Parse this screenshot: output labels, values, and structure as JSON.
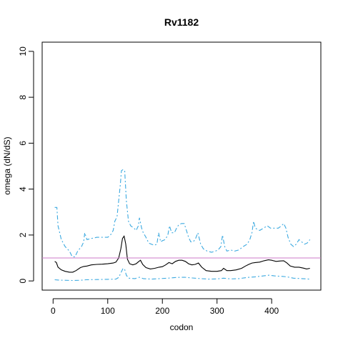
{
  "chart_data": {
    "type": "line",
    "title": "Rv1182",
    "xlabel": "codon",
    "ylabel": "omega (dN/dS)",
    "xlim": [
      -20,
      490
    ],
    "ylim": [
      -0.4,
      10.4
    ],
    "xticks": [
      0,
      100,
      200,
      300,
      400
    ],
    "yticks": [
      0,
      2,
      4,
      6,
      8,
      10
    ],
    "reference_line": {
      "y": 1,
      "color": "#cc79c8"
    },
    "series": [
      {
        "role": "upper",
        "color": "#3ba9e0",
        "style": "dashed",
        "points": [
          [
            3,
            3.2
          ],
          [
            7,
            3.2
          ],
          [
            9,
            2.4
          ],
          [
            15,
            1.8
          ],
          [
            22,
            1.5
          ],
          [
            30,
            1.3
          ],
          [
            35,
            1.05
          ],
          [
            40,
            1.05
          ],
          [
            45,
            1.3
          ],
          [
            52,
            1.5
          ],
          [
            56,
            1.7
          ],
          [
            58,
            2.1
          ],
          [
            62,
            1.8
          ],
          [
            70,
            1.85
          ],
          [
            80,
            1.9
          ],
          [
            90,
            1.9
          ],
          [
            100,
            1.9
          ],
          [
            105,
            2.0
          ],
          [
            110,
            2.2
          ],
          [
            113,
            2.6
          ],
          [
            117,
            2.8
          ],
          [
            120,
            3.5
          ],
          [
            123,
            4.2
          ],
          [
            125,
            4.8
          ],
          [
            128,
            4.85
          ],
          [
            131,
            4.8
          ],
          [
            134,
            3.5
          ],
          [
            138,
            2.6
          ],
          [
            142,
            2.4
          ],
          [
            148,
            2.3
          ],
          [
            152,
            2.2
          ],
          [
            156,
            2.4
          ],
          [
            158,
            2.75
          ],
          [
            162,
            2.3
          ],
          [
            165,
            2.1
          ],
          [
            170,
            1.9
          ],
          [
            175,
            1.65
          ],
          [
            180,
            1.6
          ],
          [
            185,
            1.55
          ],
          [
            190,
            1.6
          ],
          [
            193,
            2.1
          ],
          [
            197,
            1.7
          ],
          [
            200,
            1.75
          ],
          [
            205,
            1.8
          ],
          [
            210,
            2.0
          ],
          [
            213,
            2.4
          ],
          [
            217,
            2.1
          ],
          [
            222,
            2.1
          ],
          [
            226,
            2.3
          ],
          [
            230,
            2.45
          ],
          [
            235,
            2.5
          ],
          [
            240,
            2.5
          ],
          [
            244,
            2.2
          ],
          [
            248,
            1.9
          ],
          [
            252,
            1.7
          ],
          [
            256,
            1.7
          ],
          [
            260,
            1.8
          ],
          [
            265,
            2.1
          ],
          [
            270,
            1.6
          ],
          [
            275,
            1.4
          ],
          [
            282,
            1.3
          ],
          [
            290,
            1.25
          ],
          [
            297,
            1.3
          ],
          [
            302,
            1.35
          ],
          [
            307,
            1.5
          ],
          [
            310,
            2.0
          ],
          [
            314,
            1.5
          ],
          [
            318,
            1.3
          ],
          [
            325,
            1.35
          ],
          [
            332,
            1.3
          ],
          [
            340,
            1.35
          ],
          [
            348,
            1.5
          ],
          [
            355,
            1.6
          ],
          [
            360,
            1.8
          ],
          [
            364,
            2.1
          ],
          [
            367,
            2.6
          ],
          [
            370,
            2.3
          ],
          [
            378,
            2.2
          ],
          [
            385,
            2.3
          ],
          [
            392,
            2.4
          ],
          [
            398,
            2.3
          ],
          [
            405,
            2.3
          ],
          [
            412,
            2.3
          ],
          [
            418,
            2.4
          ],
          [
            422,
            2.5
          ],
          [
            426,
            2.3
          ],
          [
            430,
            1.9
          ],
          [
            435,
            1.6
          ],
          [
            440,
            1.5
          ],
          [
            445,
            1.6
          ],
          [
            450,
            1.8
          ],
          [
            455,
            1.7
          ],
          [
            460,
            1.6
          ],
          [
            465,
            1.65
          ],
          [
            470,
            1.8
          ]
        ]
      },
      {
        "role": "estimate",
        "color": "#000000",
        "style": "solid",
        "points": [
          [
            3,
            0.85
          ],
          [
            6,
            0.8
          ],
          [
            9,
            0.6
          ],
          [
            15,
            0.48
          ],
          [
            22,
            0.42
          ],
          [
            30,
            0.38
          ],
          [
            36,
            0.38
          ],
          [
            42,
            0.45
          ],
          [
            50,
            0.58
          ],
          [
            56,
            0.63
          ],
          [
            62,
            0.65
          ],
          [
            70,
            0.7
          ],
          [
            80,
            0.72
          ],
          [
            90,
            0.73
          ],
          [
            100,
            0.75
          ],
          [
            110,
            0.78
          ],
          [
            115,
            0.82
          ],
          [
            120,
            1.0
          ],
          [
            124,
            1.4
          ],
          [
            127,
            1.85
          ],
          [
            130,
            1.95
          ],
          [
            133,
            1.6
          ],
          [
            136,
            0.95
          ],
          [
            140,
            0.75
          ],
          [
            146,
            0.7
          ],
          [
            152,
            0.75
          ],
          [
            157,
            0.85
          ],
          [
            160,
            0.9
          ],
          [
            164,
            0.72
          ],
          [
            170,
            0.58
          ],
          [
            178,
            0.52
          ],
          [
            186,
            0.55
          ],
          [
            194,
            0.6
          ],
          [
            200,
            0.62
          ],
          [
            206,
            0.7
          ],
          [
            212,
            0.8
          ],
          [
            218,
            0.75
          ],
          [
            224,
            0.85
          ],
          [
            230,
            0.9
          ],
          [
            236,
            0.9
          ],
          [
            242,
            0.85
          ],
          [
            248,
            0.75
          ],
          [
            254,
            0.7
          ],
          [
            260,
            0.72
          ],
          [
            266,
            0.78
          ],
          [
            272,
            0.6
          ],
          [
            280,
            0.45
          ],
          [
            290,
            0.42
          ],
          [
            300,
            0.42
          ],
          [
            308,
            0.45
          ],
          [
            312,
            0.55
          ],
          [
            318,
            0.45
          ],
          [
            325,
            0.45
          ],
          [
            335,
            0.48
          ],
          [
            345,
            0.55
          ],
          [
            352,
            0.65
          ],
          [
            358,
            0.72
          ],
          [
            364,
            0.78
          ],
          [
            370,
            0.8
          ],
          [
            378,
            0.82
          ],
          [
            386,
            0.88
          ],
          [
            394,
            0.92
          ],
          [
            400,
            0.9
          ],
          [
            408,
            0.85
          ],
          [
            416,
            0.87
          ],
          [
            422,
            0.88
          ],
          [
            428,
            0.78
          ],
          [
            434,
            0.65
          ],
          [
            442,
            0.6
          ],
          [
            450,
            0.6
          ],
          [
            458,
            0.56
          ],
          [
            464,
            0.52
          ],
          [
            470,
            0.55
          ]
        ]
      },
      {
        "role": "lower",
        "color": "#3ba9e0",
        "style": "dashed",
        "points": [
          [
            3,
            0.05
          ],
          [
            10,
            0.04
          ],
          [
            20,
            0.03
          ],
          [
            35,
            0.02
          ],
          [
            50,
            0.03
          ],
          [
            60,
            0.05
          ],
          [
            80,
            0.06
          ],
          [
            100,
            0.07
          ],
          [
            115,
            0.08
          ],
          [
            120,
            0.15
          ],
          [
            125,
            0.4
          ],
          [
            128,
            0.55
          ],
          [
            131,
            0.5
          ],
          [
            134,
            0.25
          ],
          [
            138,
            0.12
          ],
          [
            150,
            0.1
          ],
          [
            158,
            0.16
          ],
          [
            165,
            0.1
          ],
          [
            180,
            0.08
          ],
          [
            195,
            0.1
          ],
          [
            210,
            0.12
          ],
          [
            225,
            0.15
          ],
          [
            240,
            0.16
          ],
          [
            255,
            0.13
          ],
          [
            270,
            0.1
          ],
          [
            285,
            0.08
          ],
          [
            300,
            0.09
          ],
          [
            312,
            0.12
          ],
          [
            325,
            0.09
          ],
          [
            340,
            0.1
          ],
          [
            355,
            0.15
          ],
          [
            370,
            0.18
          ],
          [
            385,
            0.22
          ],
          [
            395,
            0.25
          ],
          [
            405,
            0.22
          ],
          [
            418,
            0.2
          ],
          [
            428,
            0.18
          ],
          [
            440,
            0.12
          ],
          [
            455,
            0.1
          ],
          [
            470,
            0.08
          ]
        ]
      }
    ]
  }
}
